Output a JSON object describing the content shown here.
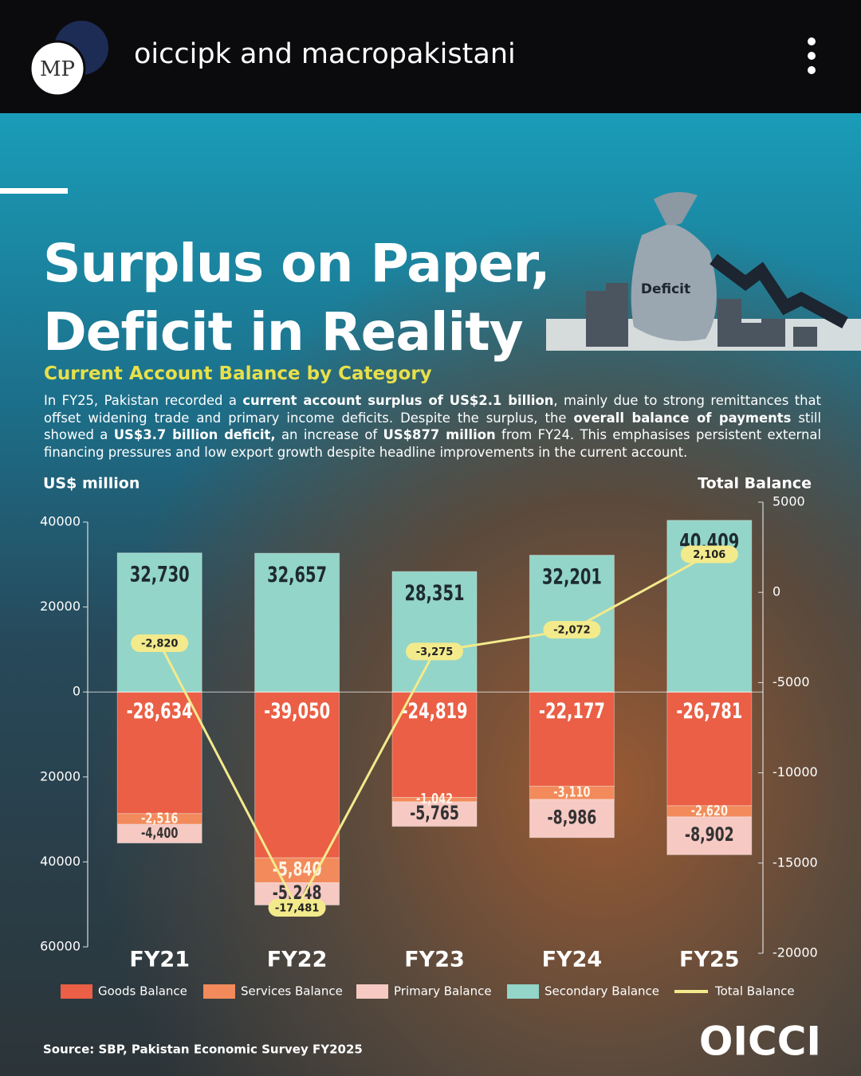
{
  "header": {
    "account": "oiccipk and macropakistani",
    "avatar_text": "MP"
  },
  "post": {
    "title_lines": [
      "Surplus on Paper,",
      "Deficit in Reality"
    ],
    "illustration_label": "Deficit",
    "subtitle": "Current Account Balance by Category",
    "description": [
      "In FY25, Pakistan recorded a ",
      "current account surplus of US$2.1 billion",
      ", mainly due to strong remittances that offset widening trade and primary income deficits. Despite the surplus, the ",
      "overall balance of payments",
      " still showed a ",
      "US$3.7 billion deficit,",
      " an increase of ",
      "US$877 million",
      " from FY24. This emphasises persistent external financing pressures and low export growth despite headline improvements in the current account."
    ],
    "source": "Source: SBP, Pakistan Economic Survey FY2025",
    "logo": "OICCI"
  },
  "chart_data": {
    "type": "bar",
    "stacked": true,
    "y_label": "US$ million",
    "y2_label": "Total Balance",
    "categories": [
      "FY21",
      "FY22",
      "FY23",
      "FY24",
      "FY25"
    ],
    "ylim": [
      -60000,
      40000
    ],
    "yticks": [
      40000,
      20000,
      0,
      {
        "value": -20000,
        "label": "20000"
      },
      {
        "value": -40000,
        "label": "40000"
      },
      {
        "value": -60000,
        "label": "60000"
      }
    ],
    "y2lim": [
      -20000,
      5000
    ],
    "y2ticks": [
      5000,
      0,
      -5000,
      -10000,
      -15000,
      -20000
    ],
    "series": [
      {
        "name": "Goods Balance",
        "color": "#ea5f45",
        "values": [
          -28634,
          -39050,
          -24819,
          -22177,
          -26781
        ],
        "value_labels": [
          "-28,634",
          "-39,050",
          "-24,819",
          "-22,177",
          "-26,781"
        ]
      },
      {
        "name": "Services Balance",
        "color": "#f28a5b",
        "values": [
          -2516,
          -5840,
          -1042,
          -3110,
          -2620
        ],
        "value_labels": [
          "-2,516",
          "-5,840",
          "-1,042",
          "-3,110",
          "-2,620"
        ]
      },
      {
        "name": "Primary Balance",
        "color": "#f6c9c3",
        "values": [
          -4400,
          -5248,
          -5765,
          -8986,
          -8902
        ],
        "value_labels": [
          "-4,400",
          "-5,248",
          "-5,765",
          "-8,986",
          "-8,902"
        ]
      },
      {
        "name": "Secondary Balance",
        "color": "#93d5c8",
        "values": [
          32730,
          32657,
          28351,
          32201,
          40409
        ],
        "value_labels": [
          "32,730",
          "32,657",
          "28,351",
          "32,201",
          "40,409"
        ]
      },
      {
        "name": "Total Balance",
        "type": "line",
        "axis": "y2",
        "color": "#f3ea8c",
        "values": [
          -2820,
          -17481,
          -3275,
          -2072,
          2106
        ],
        "value_labels": [
          "-2,820",
          "-17,481",
          "-3,275",
          "-2,072",
          "2,106"
        ]
      }
    ]
  }
}
